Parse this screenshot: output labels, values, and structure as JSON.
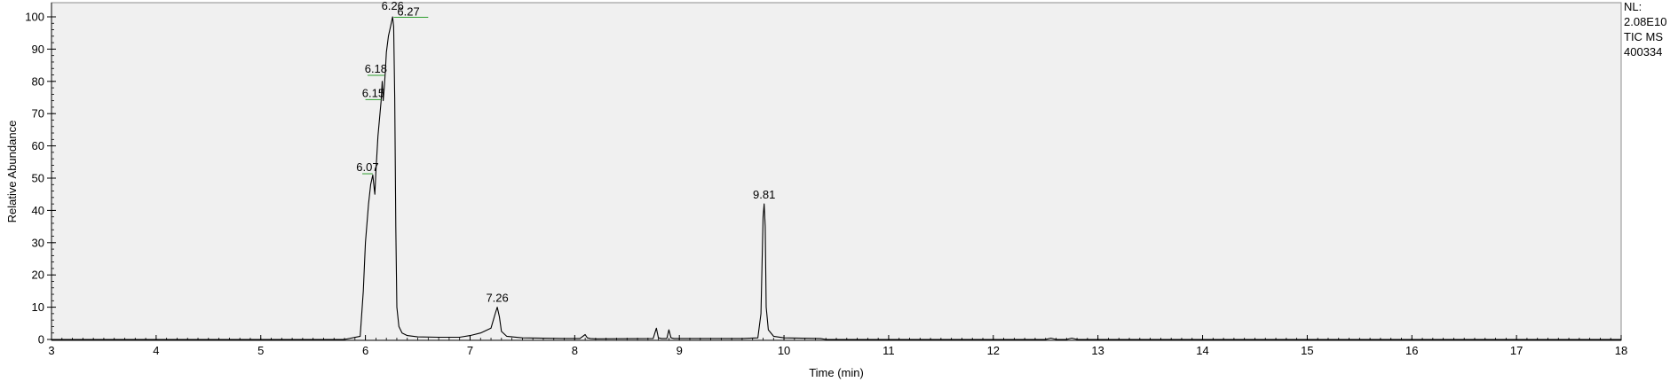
{
  "chart_data": {
    "type": "line",
    "title": "",
    "xlabel": "Time (min)",
    "ylabel": "Relative Abundance",
    "xlim": [
      3,
      18
    ],
    "ylim": [
      0,
      100
    ],
    "x_ticks": [
      3,
      4,
      5,
      6,
      7,
      8,
      9,
      10,
      11,
      12,
      13,
      14,
      15,
      16,
      17,
      18
    ],
    "y_ticks": [
      0,
      10,
      20,
      30,
      40,
      50,
      60,
      70,
      80,
      90,
      100
    ],
    "grid": false,
    "info_lines": [
      "NL:",
      "2.08E10",
      "TIC  MS",
      "400334"
    ],
    "series": [
      {
        "name": "",
        "x": [
          3.0,
          5.8,
          5.95,
          5.98,
          6.0,
          6.03,
          6.05,
          6.07,
          6.08,
          6.09,
          6.1,
          6.12,
          6.15,
          6.16,
          6.17,
          6.18,
          6.19,
          6.2,
          6.22,
          6.24,
          6.26,
          6.27,
          6.28,
          6.29,
          6.3,
          6.32,
          6.35,
          6.4,
          6.5,
          6.7,
          6.9,
          7.0,
          7.1,
          7.2,
          7.24,
          7.26,
          7.28,
          7.3,
          7.35,
          7.5,
          7.9,
          8.05,
          8.1,
          8.12,
          8.15,
          8.2,
          8.75,
          8.78,
          8.8,
          8.83,
          8.88,
          8.9,
          8.92,
          8.95,
          9.6,
          9.75,
          9.78,
          9.8,
          9.81,
          9.82,
          9.83,
          9.85,
          9.9,
          10.0,
          10.35,
          10.4,
          12.5,
          12.55,
          12.6,
          12.7,
          12.75,
          12.8,
          18.0
        ],
        "y": [
          0.0,
          0.0,
          1.0,
          15.0,
          30.0,
          42.0,
          48.0,
          51.0,
          48.0,
          45.0,
          52.0,
          63.0,
          74.0,
          80.0,
          74.0,
          78.0,
          83.0,
          89.0,
          94.0,
          97.0,
          100.0,
          97.0,
          75.0,
          35.0,
          10.0,
          4.0,
          2.0,
          1.2,
          0.8,
          0.7,
          0.7,
          1.2,
          2.0,
          3.5,
          8.0,
          10.0,
          7.0,
          2.5,
          1.0,
          0.5,
          0.3,
          0.3,
          1.5,
          0.5,
          0.3,
          0.2,
          0.3,
          3.5,
          0.5,
          0.3,
          0.3,
          3.0,
          0.5,
          0.3,
          0.3,
          0.5,
          8.0,
          38.0,
          42.0,
          35.0,
          10.0,
          3.0,
          1.0,
          0.5,
          0.3,
          0.0,
          0.0,
          0.4,
          0.0,
          0.0,
          0.4,
          0.0,
          0.0
        ]
      }
    ],
    "annotations": [
      {
        "text": "6.26",
        "x": 6.26,
        "y": 100
      },
      {
        "text": "6.27",
        "x": 6.27,
        "y": 100,
        "leader": [
          6.27,
          6.6
        ]
      },
      {
        "text": "6.18",
        "x": 6.18,
        "y": 82,
        "leader": [
          6.02,
          6.18
        ]
      },
      {
        "text": "6.15",
        "x": 6.15,
        "y": 74.5,
        "leader": [
          6.0,
          6.15
        ]
      },
      {
        "text": "6.07",
        "x": 6.07,
        "y": 51.5,
        "leader": [
          5.97,
          6.07
        ]
      },
      {
        "text": "7.26",
        "x": 7.26,
        "y": 10
      },
      {
        "text": "9.81",
        "x": 9.81,
        "y": 42
      }
    ]
  }
}
